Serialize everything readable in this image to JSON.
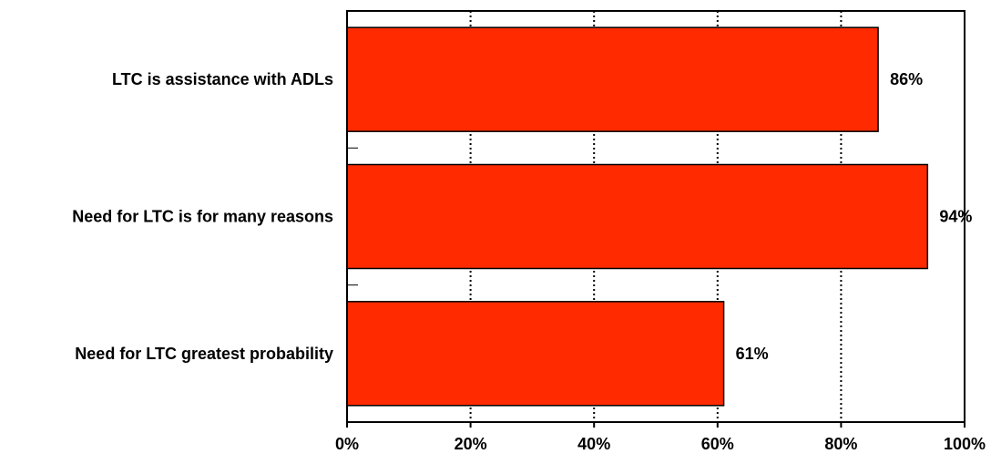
{
  "chart_data": {
    "type": "bar",
    "orientation": "horizontal",
    "categories": [
      "LTC is assistance with ADLs",
      "Need for LTC is for many reasons",
      "Need for LTC greatest probability"
    ],
    "values": [
      86,
      94,
      61
    ],
    "data_labels": [
      "86%",
      "94%",
      "61%"
    ],
    "xlim": [
      0,
      100
    ],
    "x_ticks": [
      0,
      20,
      40,
      60,
      80,
      100
    ],
    "x_tick_labels": [
      "0%",
      "20%",
      "40%",
      "60%",
      "80%",
      "100%"
    ],
    "grid": "vertical dotted",
    "legend": "none",
    "bar_color": "#ff2a00",
    "bar_edge_color": "#000000"
  }
}
